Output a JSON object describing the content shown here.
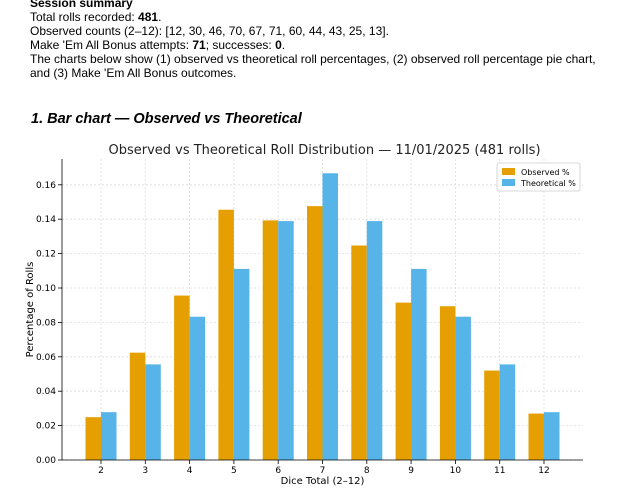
{
  "summary": {
    "heading": "Session summary",
    "total_label": "Total rolls recorded: ",
    "total_value": "481",
    "total_suffix": ".",
    "counts_line": "Observed counts (2–12): [12, 30, 46, 70, 67, 71, 60, 44, 43, 25, 13].",
    "bonus_label": "Make 'Em All Bonus attempts: ",
    "bonus_attempts": "71",
    "bonus_mid": "; successes: ",
    "bonus_successes": "0",
    "bonus_suffix": ".",
    "description": "The charts below show (1) observed vs theoretical roll percentages, (2) observed roll percentage pie chart, and (3) Make 'Em All Bonus outcomes."
  },
  "section_title": "1. Bar chart — Observed vs Theoretical",
  "colors": {
    "observed": "#E69F00",
    "theoretical": "#56B4E9"
  },
  "chart_data": {
    "type": "bar",
    "title": "Observed vs Theoretical Roll Distribution — 11/01/2025 (481 rolls)",
    "xlabel": "Dice Total (2–12)",
    "ylabel": "Percentage of Rolls",
    "categories": [
      "2",
      "3",
      "4",
      "5",
      "6",
      "7",
      "8",
      "9",
      "10",
      "11",
      "12"
    ],
    "series": [
      {
        "name": "Observed %",
        "values": [
          0.0249,
          0.0624,
          0.0956,
          0.1455,
          0.1393,
          0.1476,
          0.1247,
          0.0915,
          0.0894,
          0.052,
          0.027
        ]
      },
      {
        "name": "Theoretical %",
        "values": [
          0.0278,
          0.0556,
          0.0833,
          0.1111,
          0.1389,
          0.1667,
          0.1389,
          0.1111,
          0.0833,
          0.0556,
          0.0278
        ]
      }
    ],
    "ylim": [
      0,
      0.175
    ],
    "yticks": [
      "0.00",
      "0.02",
      "0.04",
      "0.06",
      "0.08",
      "0.10",
      "0.12",
      "0.14",
      "0.16"
    ],
    "grid": true,
    "legend": "top-right"
  }
}
